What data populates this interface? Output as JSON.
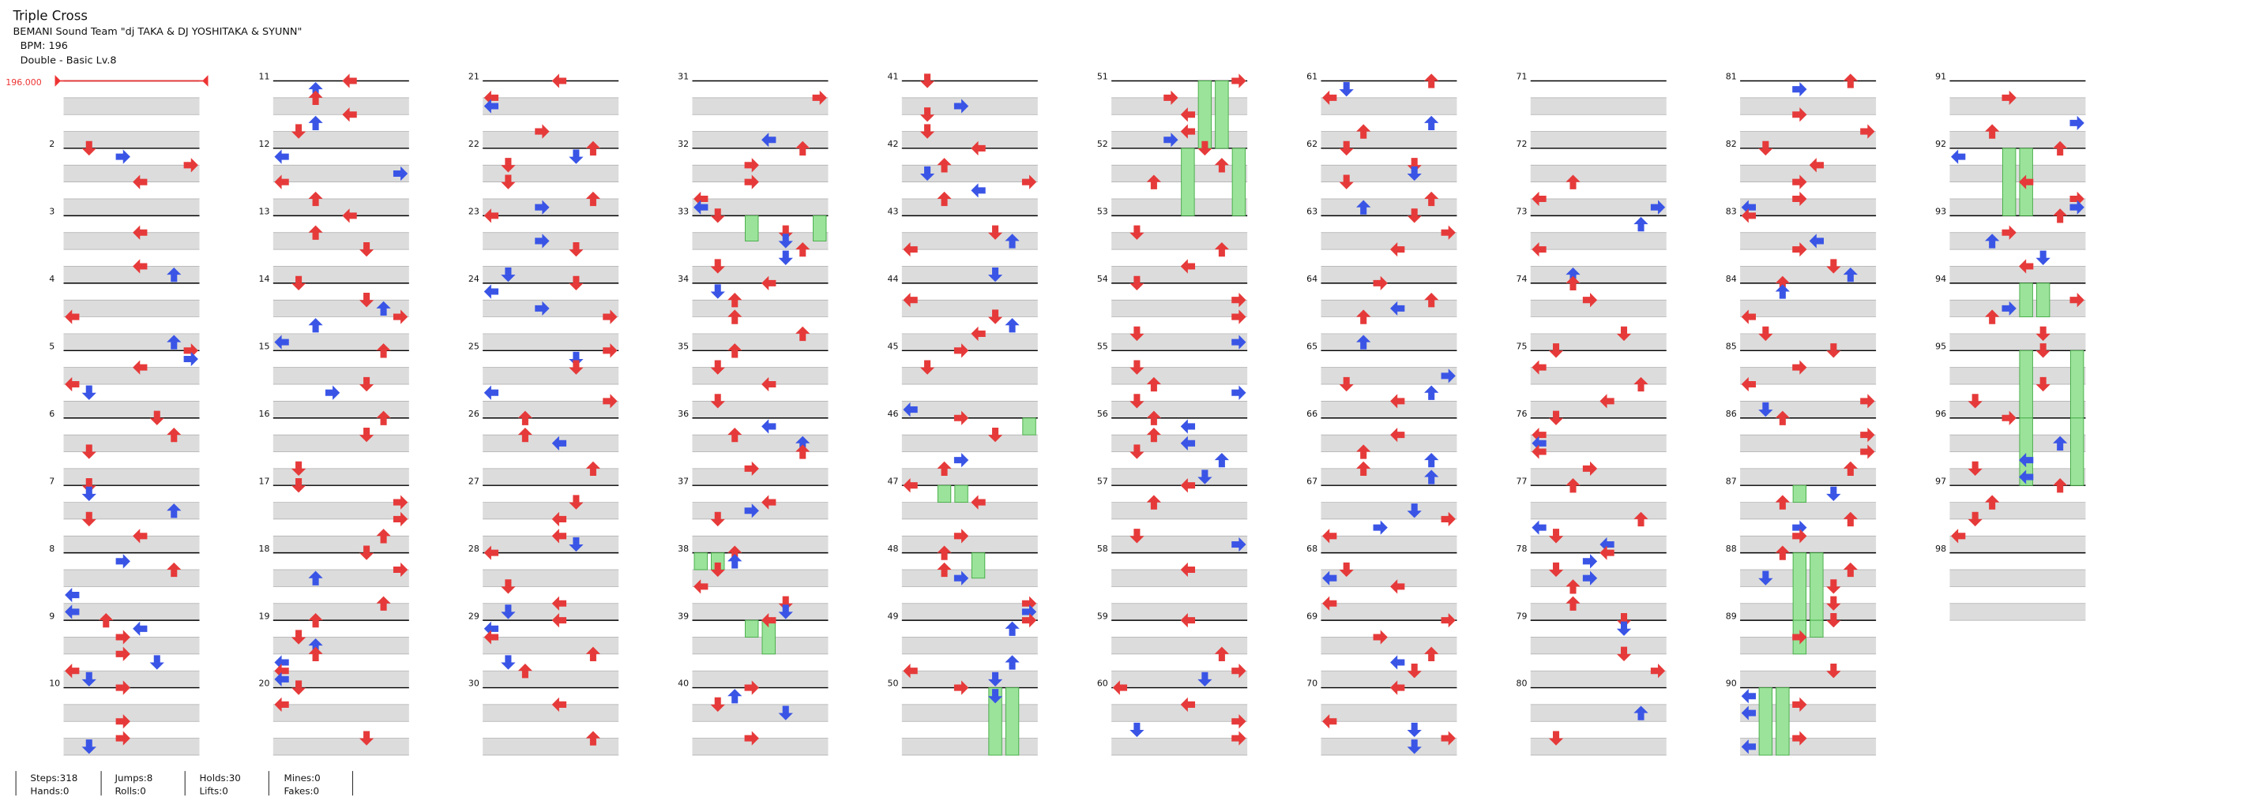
{
  "header": {
    "title": "Triple Cross",
    "artist": "BEMANI Sound Team \"dj TAKA & DJ YOSHITAKA & SYUNN\"",
    "bpm": "BPM: 196",
    "difficulty": "Double - Basic  Lv.8"
  },
  "bpm_marker": "196.000",
  "measure_labels": [
    "2",
    "3",
    "4",
    "5",
    "6",
    "7",
    "8",
    "9",
    "10",
    "11",
    "12",
    "13",
    "14",
    "15",
    "16",
    "17",
    "18",
    "19",
    "20",
    "21",
    "22",
    "23",
    "24",
    "25",
    "26",
    "27",
    "28",
    "29",
    "30",
    "31",
    "32",
    "33",
    "34",
    "35",
    "36",
    "37",
    "38",
    "39",
    "40",
    "41",
    "42",
    "43",
    "44",
    "45",
    "46",
    "47",
    "48",
    "49",
    "50",
    "51",
    "52",
    "53",
    "54",
    "55",
    "56",
    "57",
    "58",
    "59",
    "60",
    "61",
    "62",
    "63",
    "64",
    "65",
    "66",
    "67",
    "68",
    "69",
    "70",
    "71",
    "72",
    "73",
    "74",
    "75",
    "76",
    "77",
    "78",
    "79",
    "80",
    "81",
    "82",
    "83",
    "84",
    "85",
    "86",
    "87",
    "88",
    "89",
    "90",
    "91",
    "92",
    "93",
    "94",
    "95",
    "96",
    "97",
    "98"
  ],
  "stats": {
    "row1": [
      "Steps:318",
      "Jumps:8",
      "Holds:30",
      "Mines:0"
    ],
    "row2": [
      "Hands:0",
      "Rolls:0",
      "Lifts:0",
      "Fakes:0"
    ]
  }
}
